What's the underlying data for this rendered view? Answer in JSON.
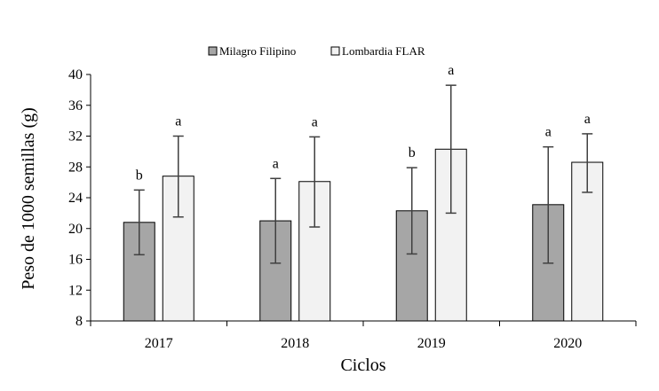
{
  "chart_data": {
    "type": "bar",
    "title": "",
    "xlabel": "Ciclos",
    "ylabel": "Peso de 1000 semillas (g)",
    "ylim": [
      8,
      40
    ],
    "yticks": [
      8,
      12,
      16,
      20,
      24,
      28,
      32,
      36,
      40
    ],
    "categories": [
      "2017",
      "2018",
      "2019",
      "2020"
    ],
    "legend_position": "top-center",
    "series": [
      {
        "name": "Milagro Filipino",
        "color": "#a6a6a6",
        "values": [
          20.8,
          21.0,
          22.3,
          23.1
        ],
        "err_low": [
          16.6,
          15.5,
          16.7,
          15.5
        ],
        "err_high": [
          25.0,
          26.5,
          27.9,
          30.6
        ],
        "labels": [
          "b",
          "a",
          "b",
          "a"
        ]
      },
      {
        "name": "Lombardia FLAR",
        "color": "#f2f2f2",
        "values": [
          26.8,
          26.1,
          30.3,
          28.6
        ],
        "err_low": [
          21.5,
          20.2,
          22.0,
          24.7
        ],
        "err_high": [
          32.0,
          31.9,
          38.6,
          32.3
        ],
        "labels": [
          "a",
          "a",
          "a",
          "a"
        ]
      }
    ]
  }
}
